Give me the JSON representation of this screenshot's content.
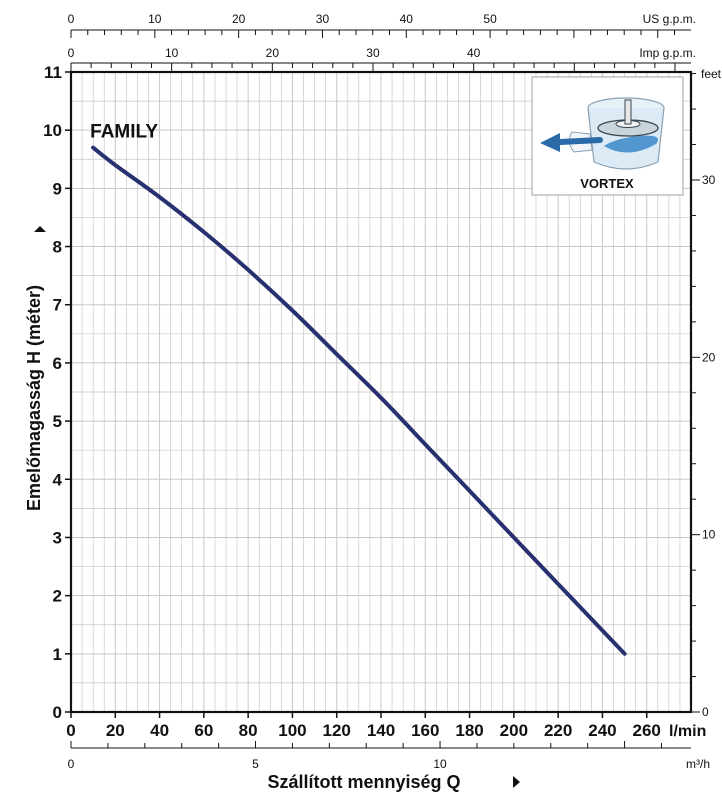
{
  "chart_data": {
    "type": "line",
    "series": [
      {
        "name": "FAMILY",
        "x": [
          10,
          20,
          40,
          60,
          80,
          100,
          120,
          140,
          160,
          180,
          200,
          220,
          240,
          250
        ],
        "y": [
          9.7,
          9.4,
          8.85,
          8.25,
          7.6,
          6.9,
          6.15,
          5.4,
          4.6,
          3.8,
          3.0,
          2.2,
          1.4,
          1.0
        ]
      }
    ],
    "x_ticks": [
      "0",
      "20",
      "40",
      "60",
      "80",
      "100",
      "120",
      "140",
      "160",
      "180",
      "200",
      "220",
      "240",
      "260"
    ],
    "x_unit": "l/min",
    "xlim": [
      0,
      280
    ],
    "y_ticks": [
      "0",
      "1",
      "2",
      "3",
      "4",
      "5",
      "6",
      "7",
      "8",
      "9",
      "10",
      "11"
    ],
    "ylim": [
      0,
      11
    ],
    "ylabel": "Emelőmagasság H (méter)",
    "xlabel": "Szállított mennyiség  Q",
    "grid": true,
    "secondary_axes": {
      "us_gpm": {
        "ticks": [
          "0",
          "10",
          "20",
          "30",
          "40",
          "50"
        ],
        "unit": "US g.p.m."
      },
      "imp_gpm": {
        "ticks": [
          "0",
          "10",
          "20",
          "30",
          "40"
        ],
        "unit": "Imp g.p.m."
      },
      "feet": {
        "ticks": [
          "0",
          "10",
          "20",
          "30"
        ],
        "unit": "feet"
      },
      "m3h": {
        "ticks": [
          "0",
          "5",
          "10"
        ],
        "unit": "m³/h"
      }
    },
    "inset": {
      "label": "VORTEX"
    }
  }
}
